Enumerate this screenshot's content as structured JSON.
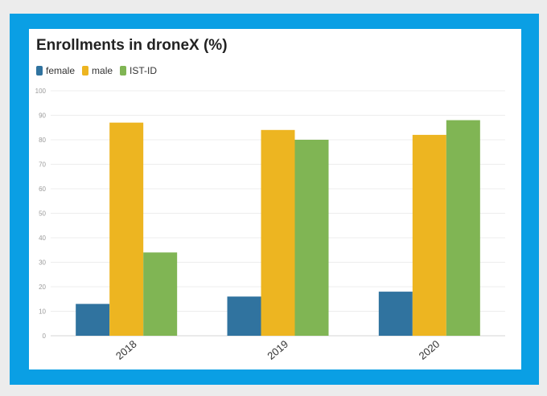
{
  "chart_data": {
    "type": "bar",
    "title": "Enrollments in droneX (%)",
    "categories": [
      "2018",
      "2019",
      "2020"
    ],
    "series": [
      {
        "name": "female",
        "color": "#30739f",
        "values": [
          13,
          16,
          18
        ]
      },
      {
        "name": "male",
        "color": "#edb521",
        "values": [
          87,
          84,
          82
        ]
      },
      {
        "name": "IST-ID",
        "color": "#80b554",
        "values": [
          34,
          80,
          88
        ]
      }
    ],
    "ylim": [
      0,
      100
    ],
    "yticks": [
      0,
      10,
      20,
      30,
      40,
      50,
      60,
      70,
      80,
      90,
      100
    ],
    "grid": true,
    "legend_position": "top-left"
  }
}
